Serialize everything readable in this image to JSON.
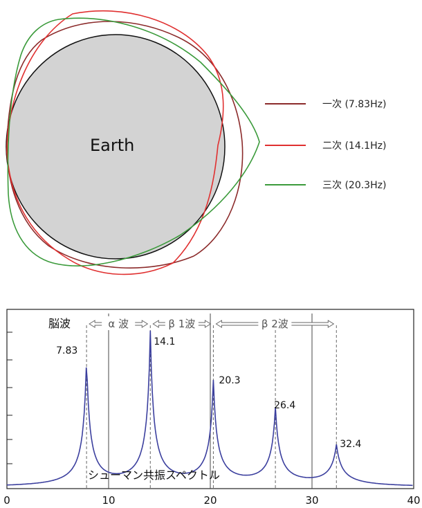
{
  "earth_diagram": {
    "earth_label": "Earth",
    "earth_fill": "#d3d3d3",
    "modes": [
      {
        "label": "一次 (7.83Hz)",
        "color": "#8b2a2a"
      },
      {
        "label": "二次 (14.1Hz)",
        "color": "#e03030"
      },
      {
        "label": "三次 (20.3Hz)",
        "color": "#3a9a3a"
      }
    ]
  },
  "chart_data": {
    "type": "line",
    "title": "シューマン共振スペクトル",
    "x_ticks": [
      "0",
      "10",
      "20",
      "30",
      "40"
    ],
    "xlim": [
      0,
      40
    ],
    "line_color": "#3b3f9e",
    "peaks": [
      {
        "x": 7.83,
        "label": "7.83"
      },
      {
        "x": 14.1,
        "label": "14.1"
      },
      {
        "x": 20.3,
        "label": "20.3"
      },
      {
        "x": 26.4,
        "label": "26.4"
      },
      {
        "x": 32.4,
        "label": "32.4"
      }
    ],
    "band_header": "脳波",
    "bands": [
      {
        "label": "α 波",
        "from": 7.83,
        "to": 14.1
      },
      {
        "label": "β 1波",
        "from": 14.1,
        "to": 20.3
      },
      {
        "label": "β 2波",
        "from": 20.3,
        "to": 32.4
      }
    ],
    "boundaries": [
      10,
      20,
      30
    ]
  }
}
